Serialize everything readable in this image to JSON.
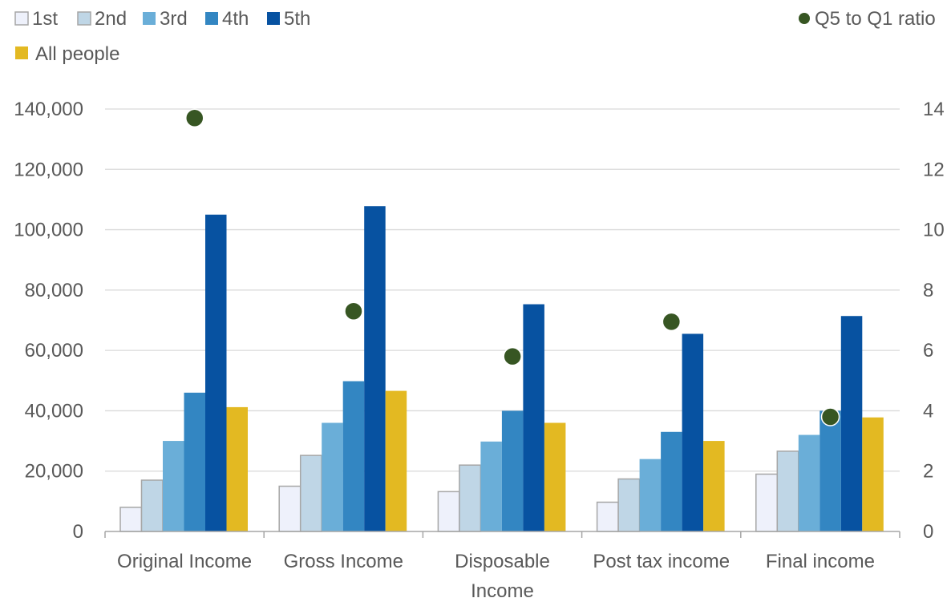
{
  "chart_data": {
    "type": "bar",
    "categories": [
      "Original Income",
      "Gross Income",
      "Disposable Income",
      "Post tax income",
      "Final income"
    ],
    "category_label_lines": [
      [
        "Original Income"
      ],
      [
        "Gross Income"
      ],
      [
        "Disposable",
        "Income"
      ],
      [
        "Post tax income"
      ],
      [
        "Final income"
      ]
    ],
    "series": [
      {
        "name": "1st",
        "color": "#eef1fb",
        "stroke": "#a6a6a6",
        "values": [
          8000,
          15000,
          13200,
          9700,
          19000
        ]
      },
      {
        "name": "2nd",
        "color": "#bfd6e6",
        "stroke": "#a6a6a6",
        "values": [
          17000,
          25200,
          22000,
          17400,
          26600
        ]
      },
      {
        "name": "3rd",
        "color": "#6aaed8",
        "values": [
          30000,
          36000,
          29800,
          24000,
          32000
        ]
      },
      {
        "name": "4th",
        "color": "#3386c2",
        "values": [
          46000,
          49800,
          40000,
          33000,
          40000
        ]
      },
      {
        "name": "5th",
        "color": "#0752a1",
        "values": [
          105000,
          107800,
          75300,
          65500,
          71400
        ]
      },
      {
        "name": "All people",
        "color": "#e3b922",
        "values": [
          41200,
          46600,
          36000,
          30000,
          37800
        ]
      }
    ],
    "secondary_series": {
      "name": "Q5 to Q1 ratio",
      "type": "scatter",
      "color": "#375623",
      "values": [
        13.7,
        7.3,
        5.8,
        6.95,
        3.8
      ]
    },
    "y_left": {
      "min": 0,
      "max": 140000,
      "ticks": [
        "0",
        "20,000",
        "40,000",
        "60,000",
        "80,000",
        "100,000",
        "120,000",
        "140,000"
      ]
    },
    "y_right": {
      "min": 0,
      "max": 14,
      "ticks": [
        "0",
        "2",
        "4",
        "6",
        "8",
        "10",
        "12",
        "14"
      ]
    },
    "grid": true,
    "legend_position": "top"
  }
}
